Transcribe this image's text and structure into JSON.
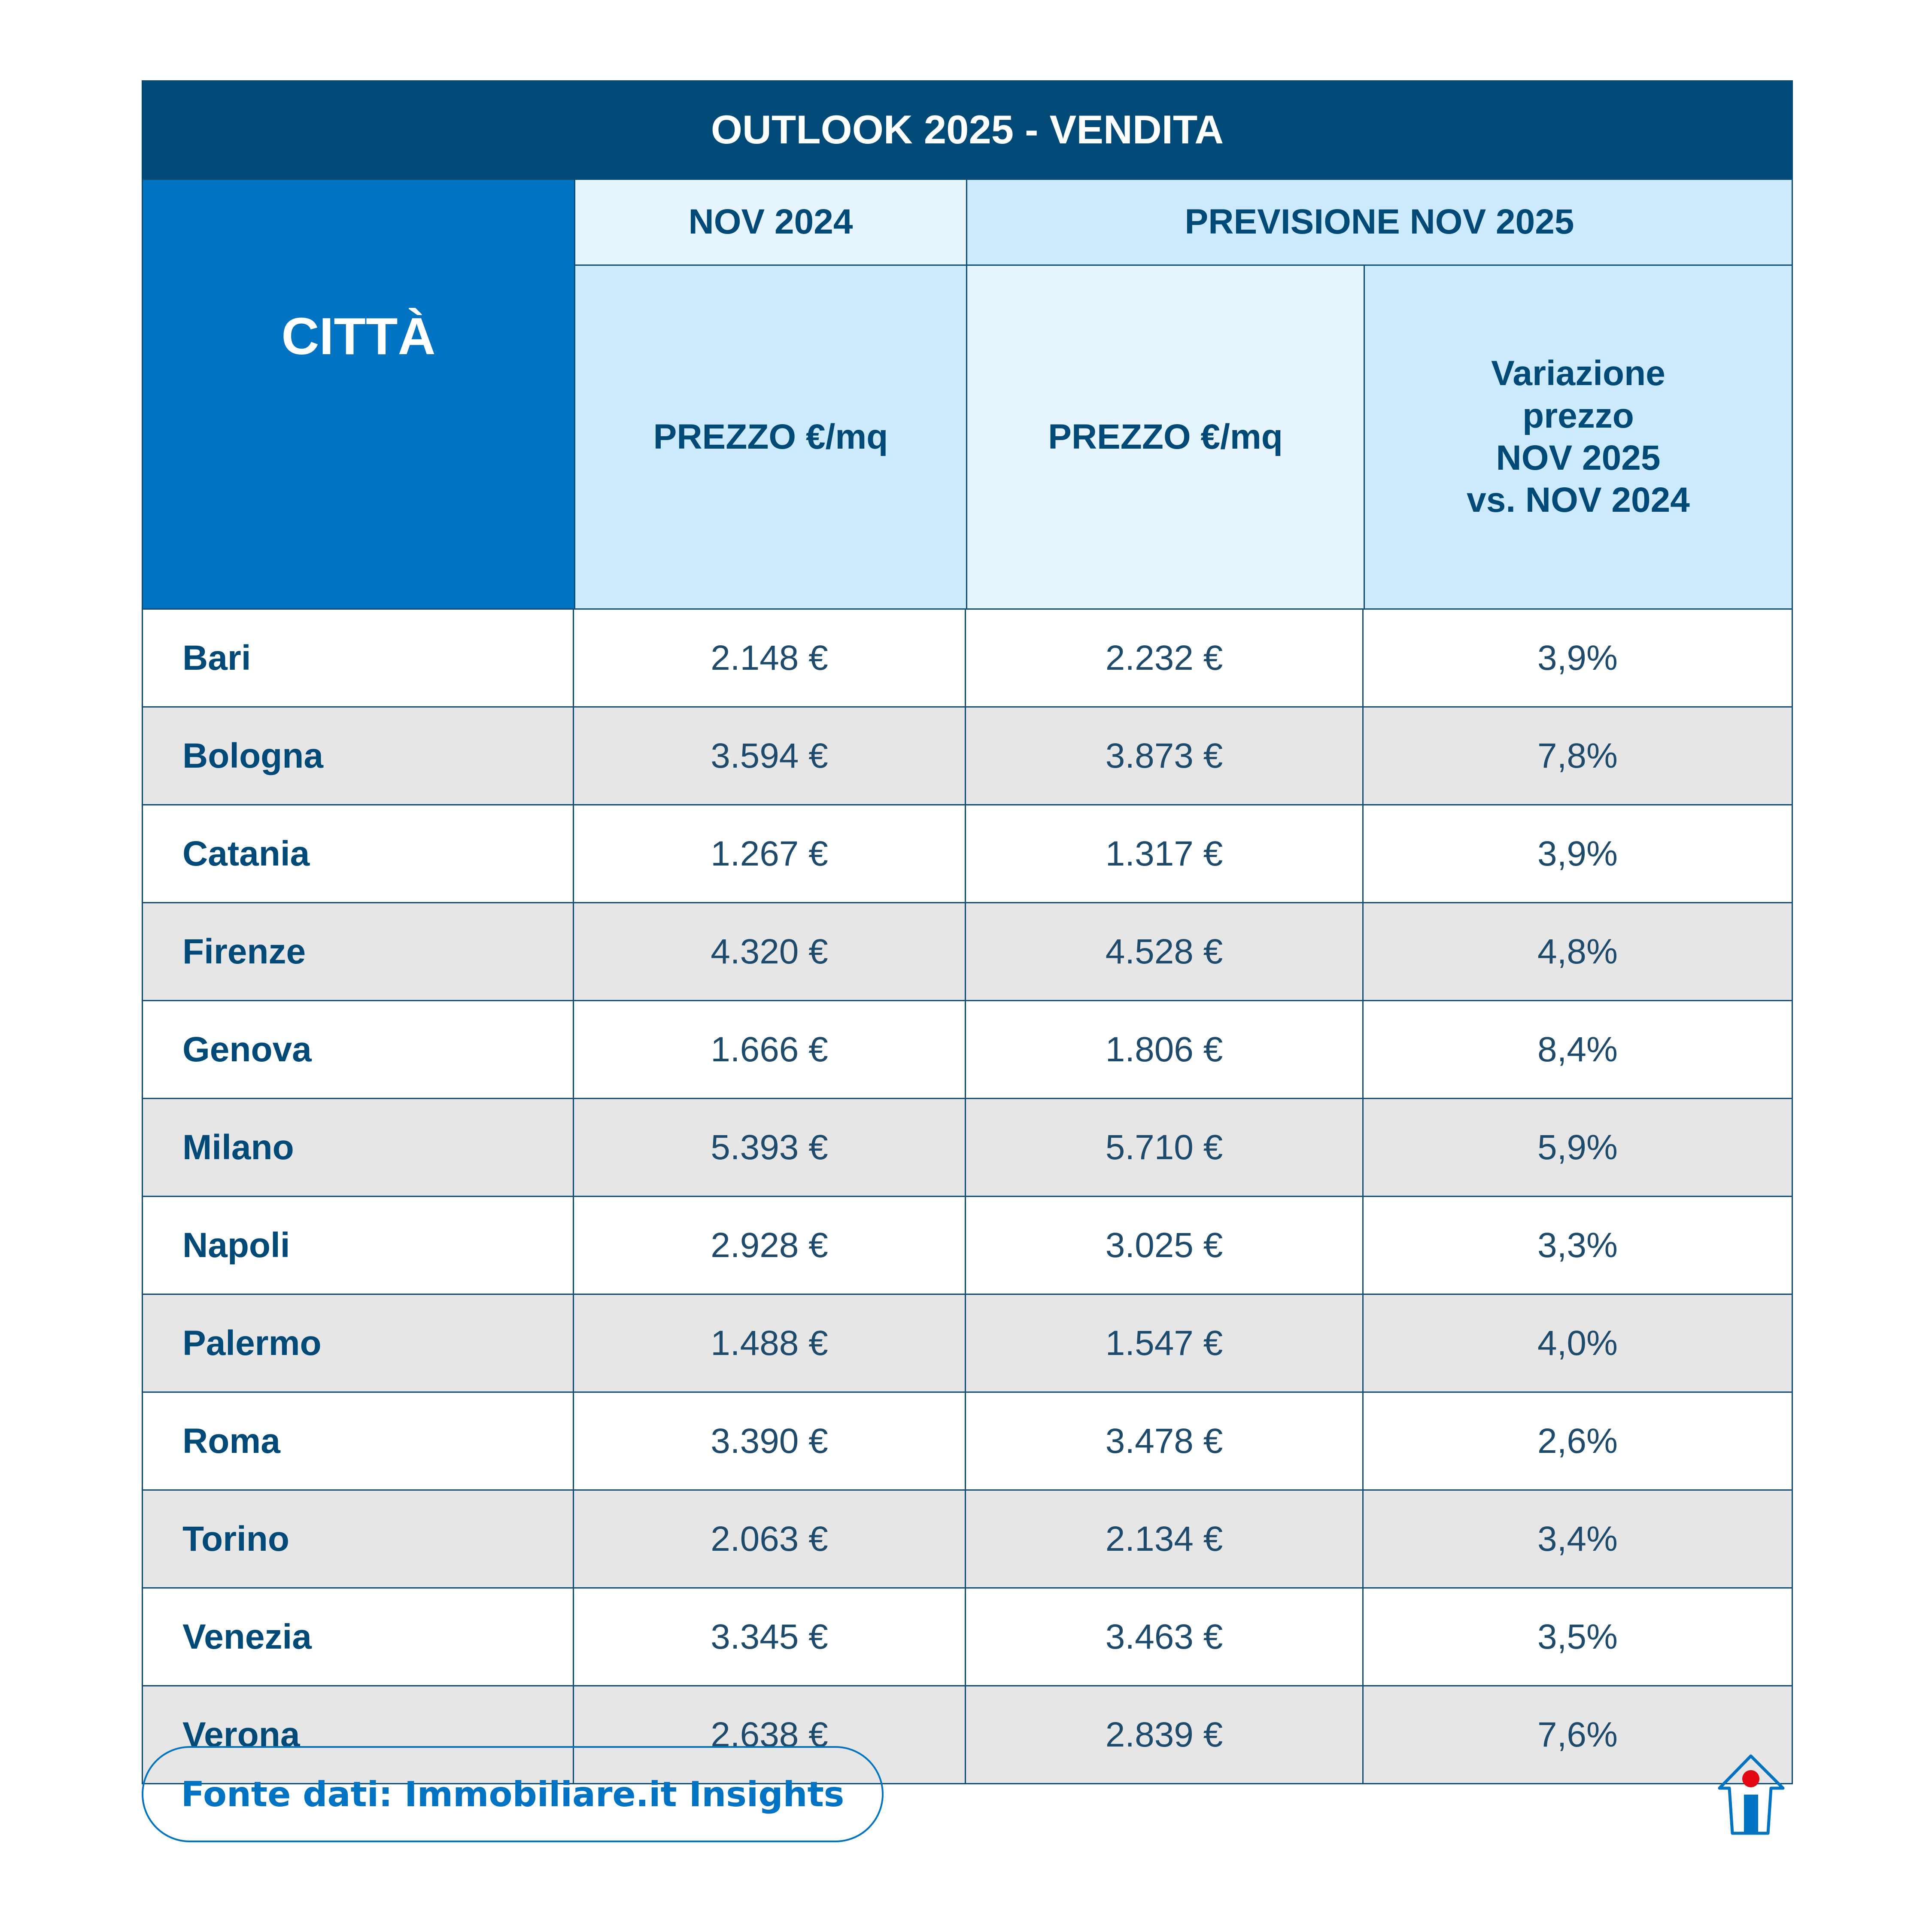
{
  "title": "OUTLOOK 2025 - VENDITA",
  "headers": {
    "city": "CITTÀ",
    "nov2024": "NOV 2024",
    "forecast": "PREVISIONE NOV 2025",
    "price_2024": "PREZZO €/mq",
    "price_2025": "PREZZO €/mq",
    "variation": [
      "Variazione",
      "prezzo",
      "NOV 2025",
      "vs. NOV 2024"
    ]
  },
  "rows": [
    {
      "city": "Bari",
      "p2024": "2.148 €",
      "p2025": "2.232 €",
      "var": "3,9%"
    },
    {
      "city": "Bologna",
      "p2024": "3.594 €",
      "p2025": "3.873 €",
      "var": "7,8%"
    },
    {
      "city": "Catania",
      "p2024": "1.267 €",
      "p2025": "1.317 €",
      "var": "3,9%"
    },
    {
      "city": "Firenze",
      "p2024": "4.320 €",
      "p2025": "4.528 €",
      "var": "4,8%"
    },
    {
      "city": "Genova",
      "p2024": "1.666 €",
      "p2025": "1.806 €",
      "var": "8,4%"
    },
    {
      "city": "Milano",
      "p2024": "5.393 €",
      "p2025": "5.710 €",
      "var": "5,9%"
    },
    {
      "city": "Napoli",
      "p2024": "2.928 €",
      "p2025": "3.025 €",
      "var": "3,3%"
    },
    {
      "city": "Palermo",
      "p2024": "1.488 €",
      "p2025": "1.547 €",
      "var": "4,0%"
    },
    {
      "city": "Roma",
      "p2024": "3.390 €",
      "p2025": "3.478 €",
      "var": "2,6%"
    },
    {
      "city": "Torino",
      "p2024": "2.063 €",
      "p2025": "2.134 €",
      "var": "3,4%"
    },
    {
      "city": "Venezia",
      "p2024": "3.345 €",
      "p2025": "3.463 €",
      "var": "3,5%"
    },
    {
      "city": "Verona",
      "p2024": "2.638 €",
      "p2025": "2.839 €",
      "var": "7,6%"
    }
  ],
  "source": "Fonte dati: Immobiliare.it Insights",
  "logo": "immobiliare-house-icon",
  "colors": {
    "dark_blue": "#014a78",
    "blue": "#0073c2",
    "light_blue": "#cceafb",
    "lighter_blue": "#e6f4fd",
    "alt_row": "#e6e6e6",
    "logo_red": "#e30613"
  }
}
